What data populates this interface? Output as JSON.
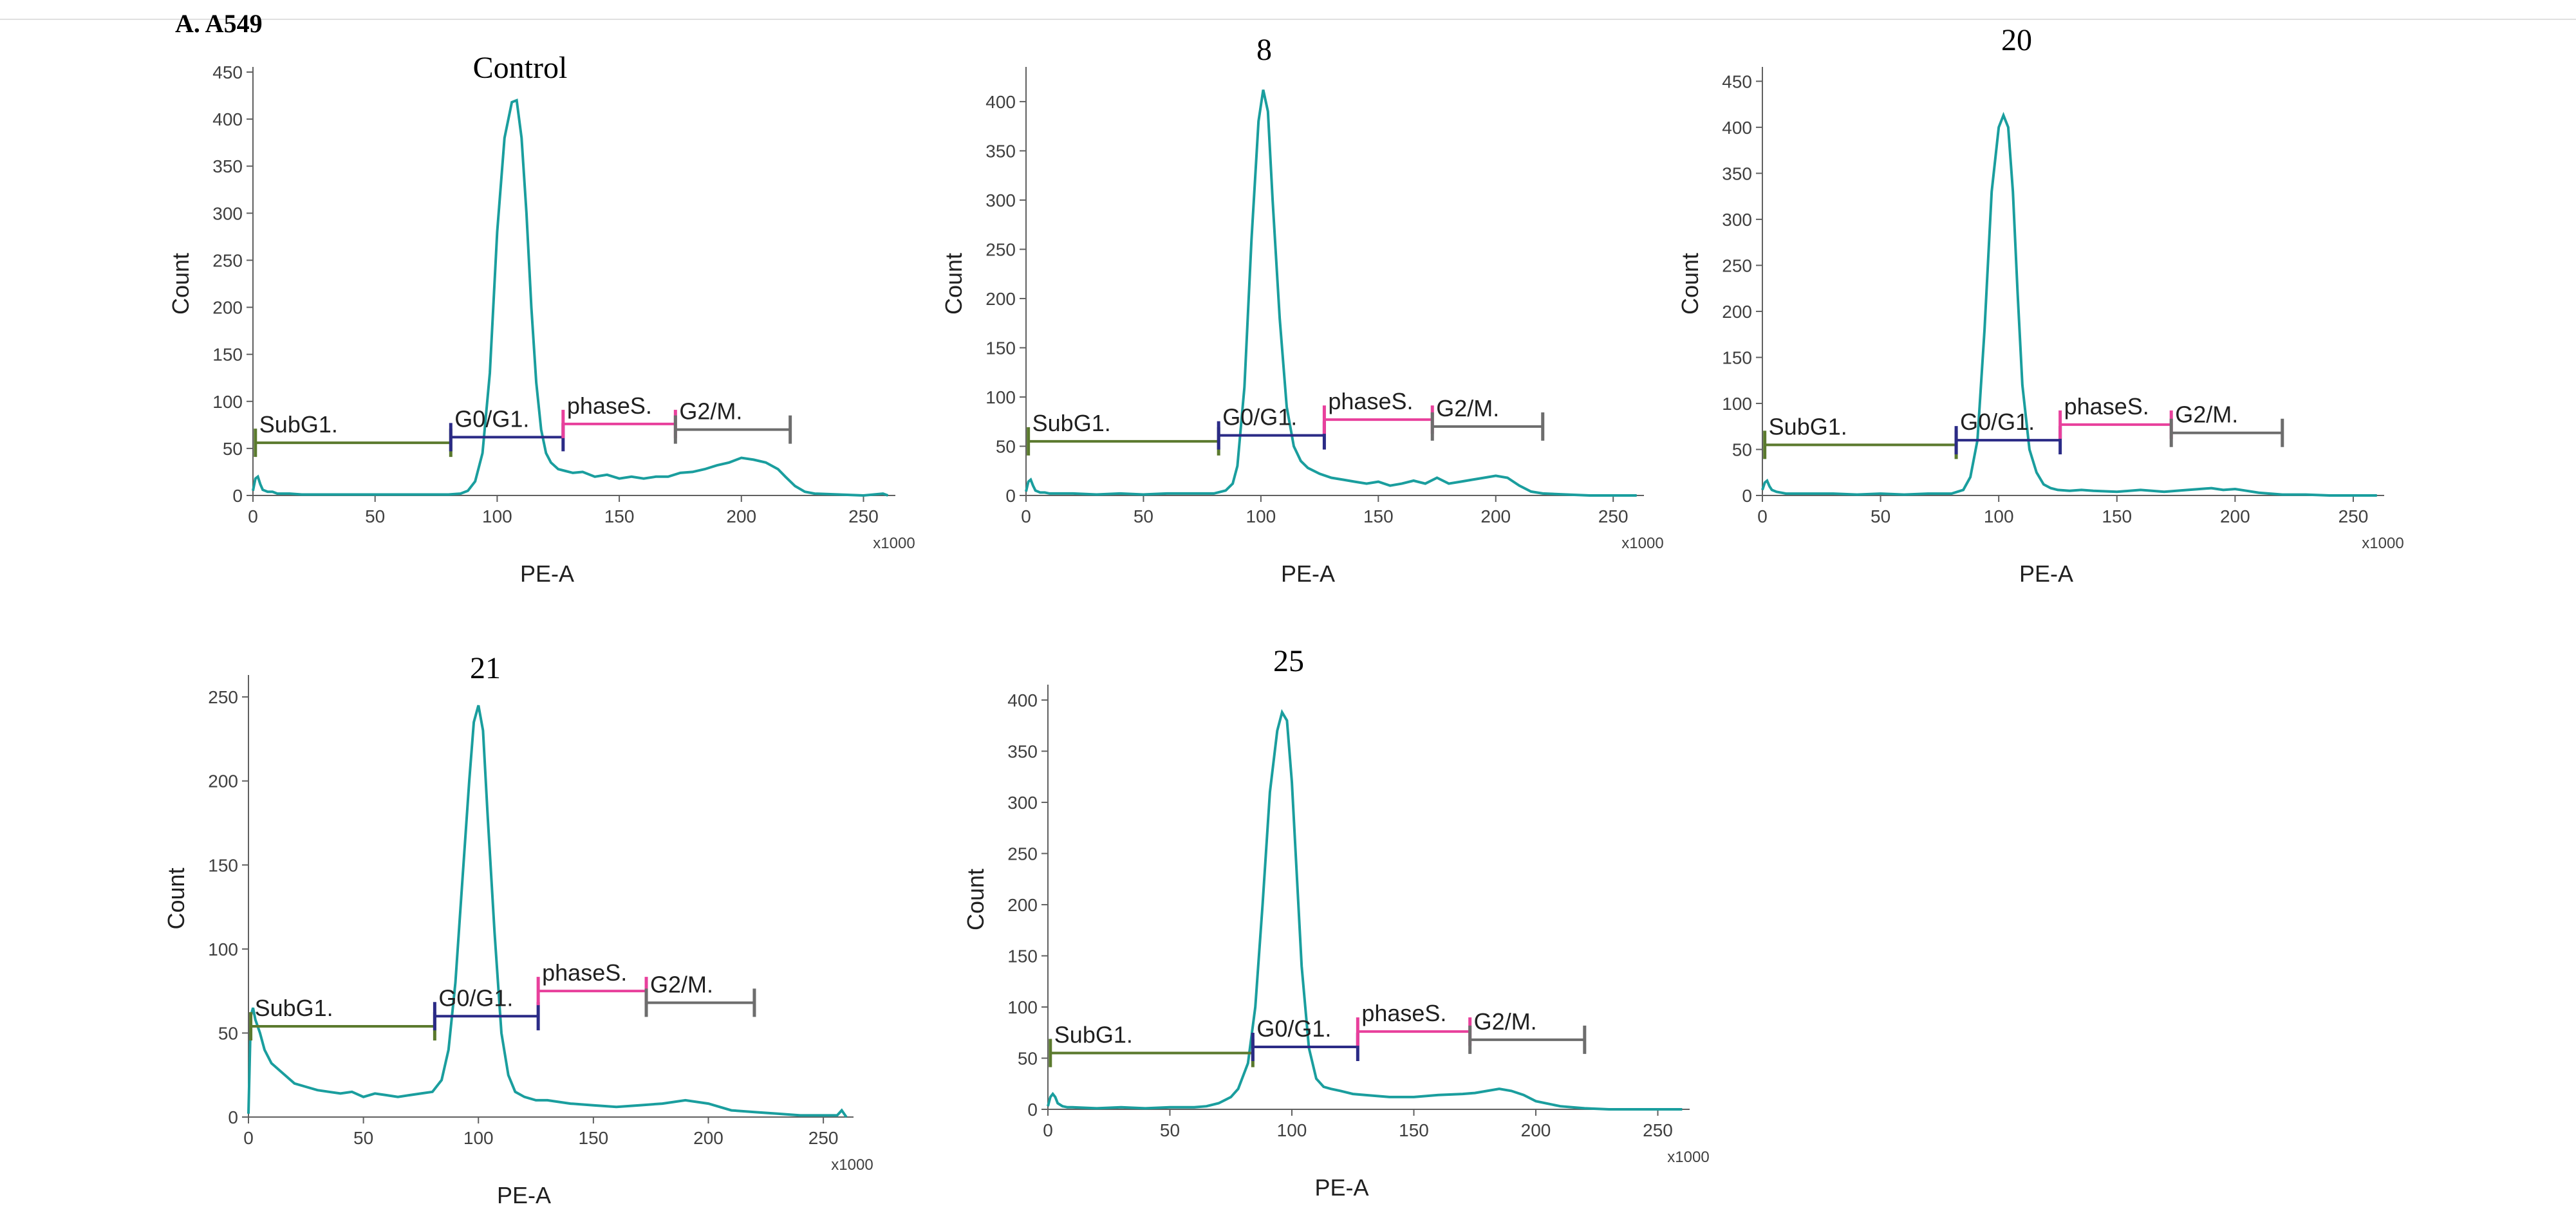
{
  "figure_label": "A. A549",
  "chart_data": [
    {
      "type": "line",
      "title": "Control",
      "xlabel": "PE-A",
      "ylabel": "Count",
      "x_unit": "x1000",
      "xlim": [
        0,
        262
      ],
      "ylim": [
        0,
        450
      ],
      "xticks": [
        0,
        50,
        100,
        150,
        200,
        250
      ],
      "yticks": [
        0,
        50,
        100,
        150,
        200,
        250,
        300,
        350,
        400,
        450
      ],
      "colors": {
        "histogram": "#1a9e9e"
      },
      "histogram": {
        "x": [
          0,
          1,
          2,
          3,
          4,
          6,
          8,
          10,
          15,
          20,
          30,
          40,
          50,
          60,
          70,
          80,
          85,
          88,
          91,
          94,
          97,
          100,
          103,
          106,
          108,
          110,
          112,
          114,
          116,
          118,
          120,
          122,
          125,
          128,
          131,
          135,
          140,
          145,
          150,
          155,
          160,
          165,
          170,
          175,
          180,
          185,
          190,
          195,
          200,
          205,
          210,
          215,
          218,
          222,
          226,
          230,
          240,
          250,
          258,
          260
        ],
        "y": [
          5,
          18,
          20,
          12,
          6,
          4,
          4,
          2,
          2,
          1,
          1,
          1,
          1,
          1,
          1,
          1,
          2,
          5,
          15,
          45,
          130,
          280,
          380,
          418,
          420,
          380,
          300,
          200,
          120,
          70,
          45,
          35,
          28,
          26,
          24,
          25,
          20,
          22,
          18,
          20,
          18,
          20,
          20,
          24,
          25,
          28,
          32,
          35,
          40,
          38,
          35,
          28,
          20,
          10,
          4,
          2,
          1,
          0,
          2,
          0
        ]
      },
      "gates": [
        {
          "name": "SubG1.",
          "start": 1,
          "end": 81,
          "level": 56,
          "color": "#5b7a2e"
        },
        {
          "name": "G0/G1.",
          "start": 81,
          "end": 127,
          "level": 62,
          "color": "#2b2b86"
        },
        {
          "name": "phaseS.",
          "start": 127,
          "end": 173,
          "level": 76,
          "color": "#e8409c"
        },
        {
          "name": "G2/M.",
          "start": 173,
          "end": 220,
          "level": 70,
          "color": "#6d6d6d"
        }
      ]
    },
    {
      "type": "line",
      "title": "8",
      "xlabel": "PE-A",
      "ylabel": "Count",
      "x_unit": "x1000",
      "xlim": [
        0,
        262
      ],
      "ylim": [
        0,
        430
      ],
      "xticks": [
        0,
        50,
        100,
        150,
        200,
        250
      ],
      "yticks": [
        0,
        50,
        100,
        150,
        200,
        250,
        300,
        350,
        400
      ],
      "colors": {
        "histogram": "#1a9e9e"
      },
      "histogram": {
        "x": [
          0,
          1,
          2,
          3,
          4,
          6,
          8,
          10,
          20,
          30,
          40,
          50,
          60,
          70,
          80,
          85,
          88,
          90,
          93,
          96,
          99,
          101,
          103,
          105,
          108,
          111,
          114,
          117,
          120,
          125,
          130,
          135,
          140,
          145,
          150,
          155,
          160,
          165,
          170,
          175,
          180,
          185,
          190,
          195,
          200,
          205,
          210,
          215,
          220,
          230,
          240,
          250,
          260
        ],
        "y": [
          4,
          14,
          16,
          10,
          5,
          3,
          3,
          2,
          2,
          1,
          2,
          1,
          2,
          2,
          2,
          5,
          12,
          30,
          110,
          260,
          380,
          412,
          390,
          300,
          180,
          90,
          50,
          35,
          28,
          22,
          18,
          16,
          14,
          12,
          14,
          10,
          12,
          15,
          12,
          18,
          12,
          14,
          16,
          18,
          20,
          18,
          10,
          4,
          2,
          1,
          0,
          0,
          0
        ]
      },
      "gates": [
        {
          "name": "SubG1.",
          "start": 1,
          "end": 82,
          "level": 55,
          "color": "#5b7a2e"
        },
        {
          "name": "G0/G1.",
          "start": 82,
          "end": 127,
          "level": 61,
          "color": "#2b2b86"
        },
        {
          "name": "phaseS.",
          "start": 127,
          "end": 173,
          "level": 77,
          "color": "#e8409c"
        },
        {
          "name": "G2/M.",
          "start": 173,
          "end": 220,
          "level": 70,
          "color": "#6d6d6d"
        }
      ]
    },
    {
      "type": "line",
      "title": "20",
      "xlabel": "PE-A",
      "ylabel": "Count",
      "x_unit": "x1000",
      "xlim": [
        0,
        262
      ],
      "ylim": [
        0,
        460
      ],
      "xticks": [
        0,
        50,
        100,
        150,
        200,
        250
      ],
      "yticks": [
        0,
        50,
        100,
        150,
        200,
        250,
        300,
        350,
        400,
        450
      ],
      "colors": {
        "histogram": "#1a9e9e"
      },
      "histogram": {
        "x": [
          0,
          1,
          2,
          3,
          4,
          6,
          8,
          10,
          20,
          30,
          40,
          50,
          60,
          70,
          80,
          85,
          88,
          91,
          94,
          97,
          100,
          102,
          104,
          106,
          108,
          110,
          113,
          116,
          119,
          122,
          125,
          130,
          135,
          140,
          150,
          160,
          170,
          180,
          190,
          195,
          200,
          205,
          210,
          220,
          230,
          240,
          250,
          260
        ],
        "y": [
          6,
          14,
          16,
          10,
          6,
          4,
          3,
          2,
          2,
          2,
          1,
          2,
          1,
          2,
          2,
          6,
          20,
          60,
          180,
          330,
          400,
          413,
          400,
          330,
          220,
          120,
          50,
          25,
          12,
          8,
          6,
          5,
          6,
          5,
          4,
          6,
          4,
          6,
          8,
          6,
          7,
          5,
          3,
          1,
          1,
          0,
          0,
          0
        ]
      },
      "gates": [
        {
          "name": "SubG1.",
          "start": 1,
          "end": 82,
          "level": 55,
          "color": "#5b7a2e"
        },
        {
          "name": "G0/G1.",
          "start": 82,
          "end": 126,
          "level": 60,
          "color": "#2b2b86"
        },
        {
          "name": "phaseS.",
          "start": 126,
          "end": 173,
          "level": 77,
          "color": "#e8409c"
        },
        {
          "name": "G2/M.",
          "start": 173,
          "end": 220,
          "level": 68,
          "color": "#6d6d6d"
        }
      ]
    },
    {
      "type": "line",
      "title": "21",
      "xlabel": "PE-A",
      "ylabel": "Count",
      "x_unit": "x1000",
      "xlim": [
        0,
        262
      ],
      "ylim": [
        0,
        260
      ],
      "xticks": [
        0,
        50,
        100,
        150,
        200,
        250
      ],
      "yticks": [
        0,
        50,
        100,
        150,
        200,
        250
      ],
      "colors": {
        "histogram": "#1a9e9e"
      },
      "histogram": {
        "x": [
          0,
          1,
          2,
          3,
          5,
          7,
          10,
          15,
          20,
          25,
          30,
          35,
          40,
          45,
          50,
          55,
          60,
          65,
          70,
          75,
          80,
          84,
          87,
          90,
          93,
          96,
          98,
          100,
          102,
          104,
          107,
          110,
          113,
          116,
          120,
          125,
          130,
          140,
          150,
          160,
          170,
          180,
          190,
          200,
          210,
          220,
          230,
          240,
          250,
          256,
          258,
          260
        ],
        "y": [
          2,
          60,
          65,
          58,
          50,
          40,
          32,
          26,
          20,
          18,
          16,
          15,
          14,
          15,
          12,
          14,
          13,
          12,
          13,
          14,
          15,
          22,
          40,
          80,
          140,
          200,
          235,
          245,
          230,
          180,
          110,
          50,
          25,
          15,
          12,
          10,
          10,
          8,
          7,
          6,
          7,
          8,
          10,
          8,
          4,
          3,
          2,
          1,
          1,
          1,
          4,
          0
        ]
      },
      "gates": [
        {
          "name": "SubG1.",
          "start": 1,
          "end": 81,
          "level": 54,
          "color": "#5b7a2e"
        },
        {
          "name": "G0/G1.",
          "start": 81,
          "end": 126,
          "level": 60,
          "color": "#2b2b86"
        },
        {
          "name": "phaseS.",
          "start": 126,
          "end": 173,
          "level": 75,
          "color": "#e8409c"
        },
        {
          "name": "G2/M.",
          "start": 173,
          "end": 220,
          "level": 68,
          "color": "#6d6d6d"
        }
      ]
    },
    {
      "type": "line",
      "title": "25",
      "xlabel": "PE-A",
      "ylabel": "Count",
      "x_unit": "x1000",
      "xlim": [
        0,
        262
      ],
      "ylim": [
        0,
        410
      ],
      "xticks": [
        0,
        50,
        100,
        150,
        200,
        250
      ],
      "yticks": [
        0,
        50,
        100,
        150,
        200,
        250,
        300,
        350,
        400
      ],
      "colors": {
        "histogram": "#1a9e9e"
      },
      "histogram": {
        "x": [
          0,
          1,
          2,
          3,
          4,
          6,
          8,
          10,
          20,
          30,
          40,
          50,
          60,
          65,
          70,
          75,
          78,
          82,
          85,
          88,
          91,
          94,
          96,
          98,
          100,
          102,
          104,
          107,
          110,
          113,
          116,
          120,
          125,
          130,
          140,
          150,
          160,
          170,
          175,
          180,
          185,
          190,
          195,
          200,
          210,
          220,
          230,
          240,
          250,
          260
        ],
        "y": [
          3,
          12,
          15,
          12,
          6,
          3,
          2,
          2,
          1,
          2,
          1,
          2,
          2,
          3,
          6,
          12,
          20,
          45,
          100,
          200,
          310,
          370,
          388,
          380,
          320,
          230,
          140,
          60,
          30,
          22,
          20,
          18,
          15,
          14,
          12,
          12,
          14,
          15,
          16,
          18,
          20,
          18,
          14,
          8,
          3,
          1,
          0,
          0,
          0,
          0
        ]
      },
      "gates": [
        {
          "name": "SubG1.",
          "start": 1,
          "end": 84,
          "level": 55,
          "color": "#5b7a2e"
        },
        {
          "name": "G0/G1.",
          "start": 84,
          "end": 127,
          "level": 61,
          "color": "#2b2b86"
        },
        {
          "name": "phaseS.",
          "start": 127,
          "end": 173,
          "level": 76,
          "color": "#e8409c"
        },
        {
          "name": "G2/M.",
          "start": 173,
          "end": 220,
          "level": 68,
          "color": "#6d6d6d"
        }
      ]
    }
  ]
}
